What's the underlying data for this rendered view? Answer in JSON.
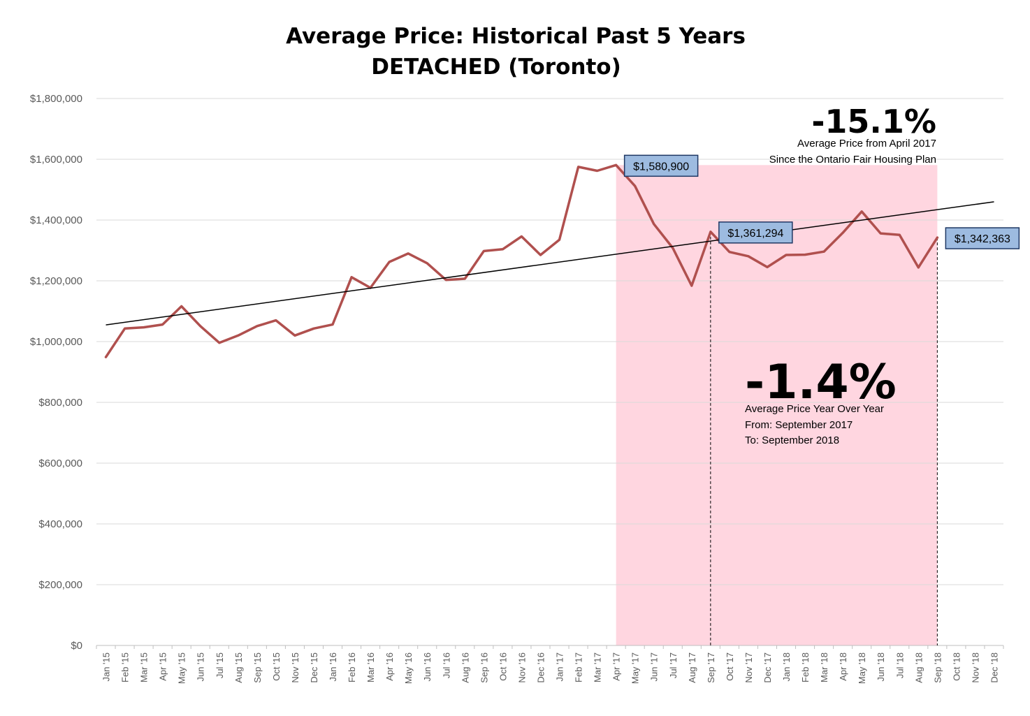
{
  "chart_data": {
    "type": "line",
    "title": "Average Price: Historical Past 5 Years",
    "subtitle": "DETACHED (Toronto)",
    "xlabel": "",
    "ylabel": "",
    "ylim": [
      0,
      1800000
    ],
    "grid": true,
    "legend": "none",
    "categories": [
      "Jan '15",
      "Feb '15",
      "Mar '15",
      "Apr '15",
      "May '15",
      "Jun '15",
      "Jul '15",
      "Aug '15",
      "Sep '15",
      "Oct '15",
      "Nov '15",
      "Dec '15",
      "Jan '16",
      "Feb '16",
      "Mar '16",
      "Apr '16",
      "May '16",
      "Jun '16",
      "Jul '16",
      "Aug '16",
      "Sep '16",
      "Oct '16",
      "Nov '16",
      "Dec '16",
      "Jan '17",
      "Feb '17",
      "Mar '17",
      "Apr '17",
      "May '17",
      "Jun '17",
      "Jul '17",
      "Aug '17",
      "Sep '17",
      "Oct '17",
      "Nov '17",
      "Dec '17",
      "Jan '18",
      "Feb '18",
      "Mar '18",
      "Apr '18",
      "May '18",
      "Jun '18",
      "Jul '18",
      "Aug '18",
      "Sep '18",
      "Oct '18",
      "Nov '18",
      "Dec '18"
    ],
    "yticks": [
      "$0",
      "$200,000",
      "$400,000",
      "$600,000",
      "$800,000",
      "$1,000,000",
      "$1,200,000",
      "$1,400,000",
      "$1,600,000",
      "$1,800,000"
    ],
    "series": [
      {
        "color": "#b0504e",
        "values": [
          949000,
          1043000,
          1047000,
          1056000,
          1116000,
          1051000,
          996000,
          1020000,
          1051000,
          1070000,
          1020000,
          1043000,
          1056000,
          1212000,
          1177000,
          1262000,
          1290000,
          1258000,
          1203000,
          1207000,
          1298000,
          1304000,
          1346000,
          1285000,
          1335000,
          1575000,
          1562000,
          1580900,
          1512000,
          1387000,
          1308000,
          1184000,
          1361294,
          1295000,
          1281000,
          1245000,
          1285000,
          1286000,
          1296000,
          1358000,
          1428000,
          1356000,
          1351000,
          1244000,
          1342363,
          null,
          null,
          null
        ]
      }
    ],
    "trendline": {
      "color": "#000000",
      "start_value": 1055000,
      "end_value": 1460000
    },
    "shaded_region": {
      "from": "Apr '17",
      "to": "Sep '18",
      "color": "#ffd6e0"
    },
    "dashed_markers": [
      "Sep '17",
      "Sep '18"
    ],
    "callouts": [
      {
        "label": "$1,580,900",
        "at": "Apr '17",
        "value": 1580900
      },
      {
        "label": "$1,361,294",
        "at": "Sep '17",
        "value": 1361294
      },
      {
        "label": "$1,342,363",
        "at": "Sep '18",
        "value": 1342363
      }
    ],
    "callout_style": {
      "fill": "#9dbbe0",
      "stroke": "#1f3864"
    },
    "annotations": [
      {
        "headline": "-15.1%",
        "lines": [
          "Average Price from April 2017",
          "Since the Ontario Fair Housing Plan"
        ]
      },
      {
        "headline": "-1.4%",
        "lines": [
          "Average Price Year Over Year",
          "From: September 2017",
          "To: September 2018"
        ]
      }
    ]
  }
}
